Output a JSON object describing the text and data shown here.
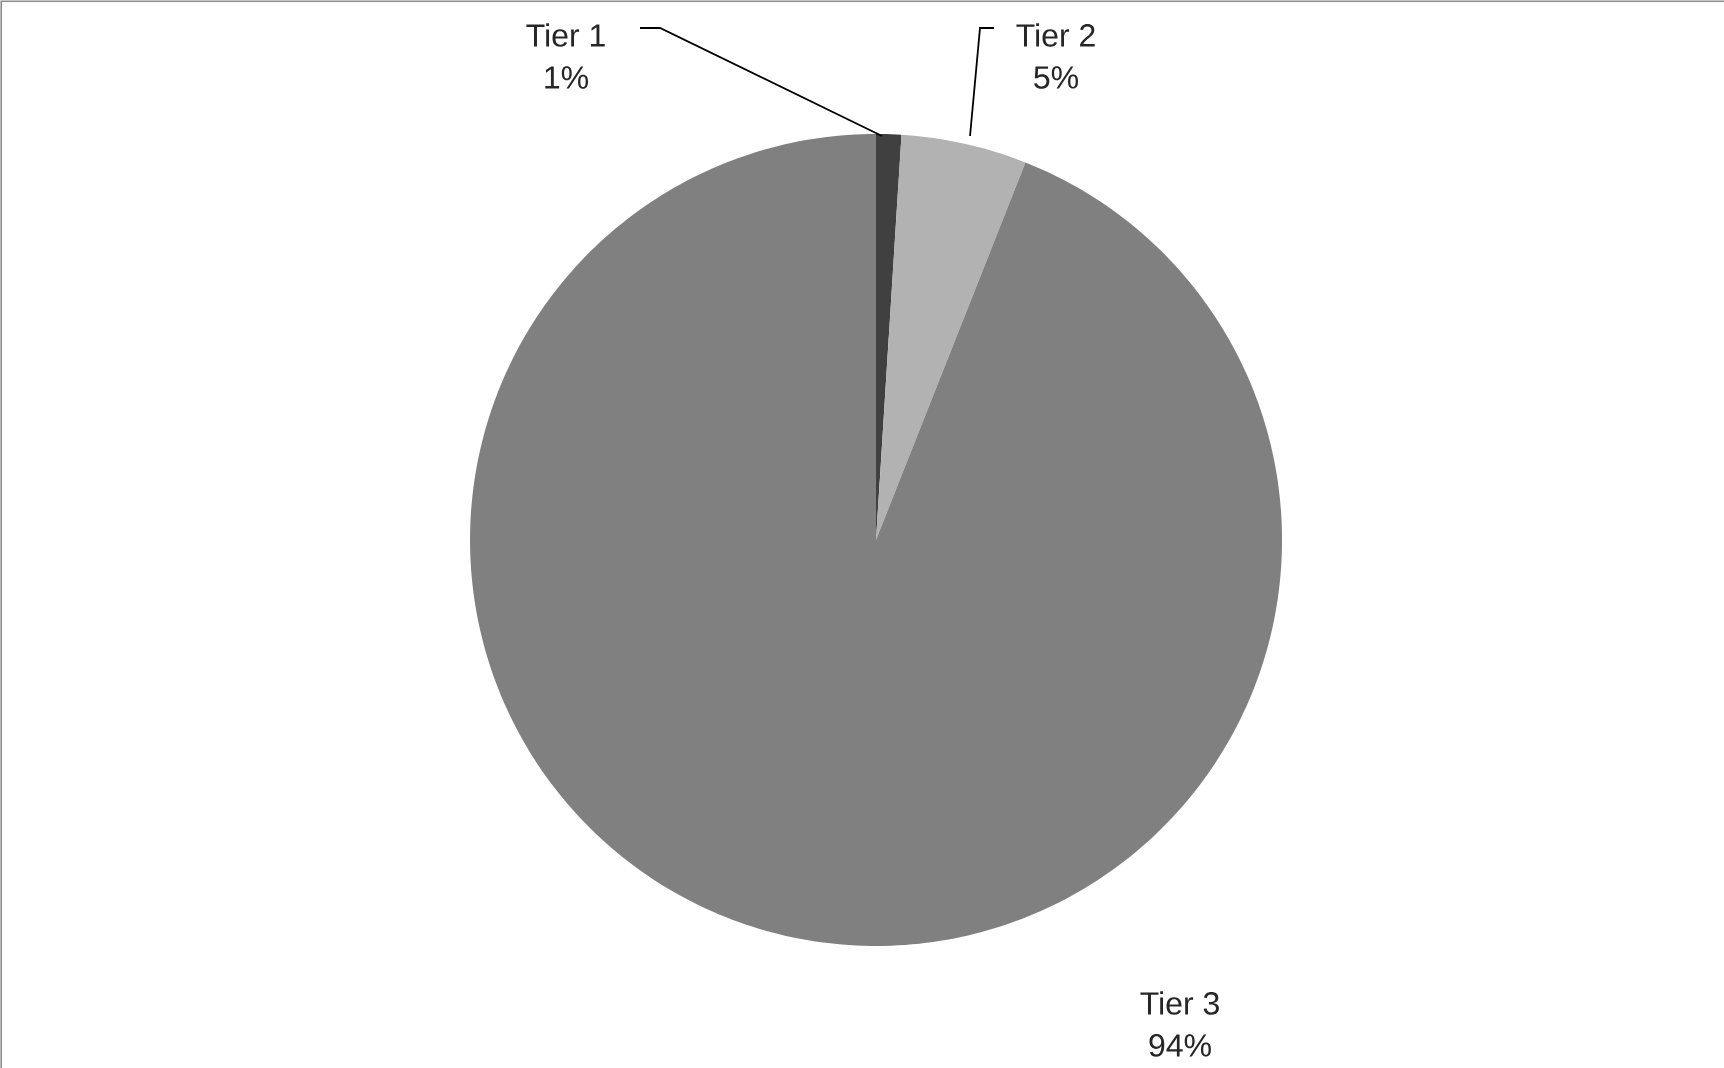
{
  "chart_data": {
    "type": "pie",
    "categories": [
      "Tier 1",
      "Tier 2",
      "Tier 3"
    ],
    "values": [
      1,
      5,
      94
    ],
    "colors": [
      "#404040",
      "#b2b2b2",
      "#808080"
    ],
    "value_labels": [
      "1%",
      "5%",
      "94%"
    ]
  }
}
